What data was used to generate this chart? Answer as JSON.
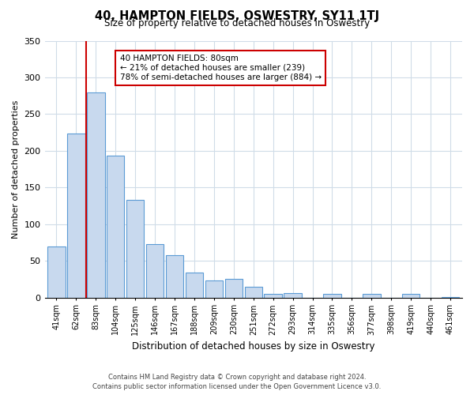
{
  "title": "40, HAMPTON FIELDS, OSWESTRY, SY11 1TJ",
  "subtitle": "Size of property relative to detached houses in Oswestry",
  "xlabel": "Distribution of detached houses by size in Oswestry",
  "ylabel": "Number of detached properties",
  "bar_labels": [
    "41sqm",
    "62sqm",
    "83sqm",
    "104sqm",
    "125sqm",
    "146sqm",
    "167sqm",
    "188sqm",
    "209sqm",
    "230sqm",
    "251sqm",
    "272sqm",
    "293sqm",
    "314sqm",
    "335sqm",
    "356sqm",
    "377sqm",
    "398sqm",
    "419sqm",
    "440sqm",
    "461sqm"
  ],
  "bar_values": [
    70,
    224,
    280,
    193,
    133,
    73,
    58,
    34,
    23,
    25,
    15,
    5,
    6,
    0,
    5,
    0,
    5,
    0,
    5,
    0,
    1
  ],
  "bar_color": "#c8d9ee",
  "bar_edge_color": "#5b9bd5",
  "vline_x": 1.5,
  "vline_color": "#cc0000",
  "annotation_text": "40 HAMPTON FIELDS: 80sqm\n← 21% of detached houses are smaller (239)\n78% of semi-detached houses are larger (884) →",
  "annotation_box_edgecolor": "#cc0000",
  "ylim": [
    0,
    350
  ],
  "yticks": [
    0,
    50,
    100,
    150,
    200,
    250,
    300,
    350
  ],
  "footer_line1": "Contains HM Land Registry data © Crown copyright and database right 2024.",
  "footer_line2": "Contains public sector information licensed under the Open Government Licence v3.0.",
  "bg_color": "#ffffff",
  "grid_color": "#d0dce8"
}
